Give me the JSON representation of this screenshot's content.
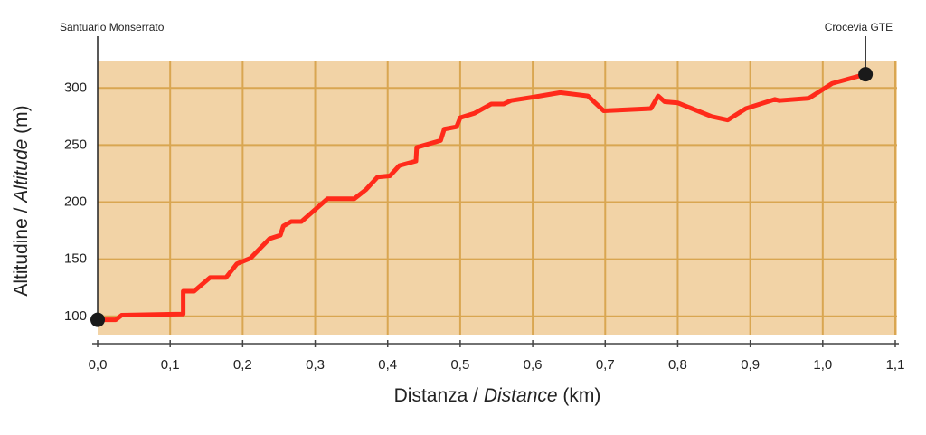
{
  "chart_data": {
    "type": "line",
    "x_label": [
      "Distanza / ",
      "Distance",
      " (km)"
    ],
    "y_label": [
      "Altitudine / ",
      "Altitude",
      " (m)"
    ],
    "x": [
      0,
      0.025,
      0.033,
      0.115,
      0.118,
      0.118,
      0.133,
      0.155,
      0.177,
      0.192,
      0.211,
      0.237,
      0.252,
      0.256,
      0.267,
      0.281,
      0.317,
      0.354,
      0.37,
      0.386,
      0.403,
      0.416,
      0.439,
      0.44,
      0.473,
      0.478,
      0.495,
      0.5,
      0.52,
      0.543,
      0.56,
      0.57,
      0.601,
      0.638,
      0.676,
      0.698,
      0.763,
      0.773,
      0.782,
      0.8,
      0.847,
      0.869,
      0.894,
      0.934,
      0.94,
      0.981,
      1.013,
      1.059
    ],
    "series": [
      {
        "color": "#ff2a1a",
        "values": [
          97,
          97,
          101,
          102,
          102,
          122,
          122,
          134,
          134,
          146,
          151,
          168,
          171,
          179,
          183,
          183,
          203,
          203,
          211,
          222,
          223,
          232,
          236,
          248,
          254,
          264,
          266,
          274,
          278,
          286,
          286,
          289,
          292,
          296,
          293,
          280,
          282,
          293,
          288,
          287,
          275,
          272,
          282,
          290,
          289,
          291,
          304,
          312
        ]
      }
    ],
    "annotations": [
      {
        "text": "Santuario Monserrato",
        "x": 0,
        "y": 97
      },
      {
        "text": "Crocevia GTE",
        "x": 1.059,
        "y": 312
      }
    ],
    "xlim": [
      0,
      1.1
    ],
    "ylim": [
      84,
      324
    ],
    "xticks": [
      {
        "value": 0,
        "label": "0,0"
      },
      {
        "value": 0.1,
        "label": "0,1"
      },
      {
        "value": 0.2,
        "label": "0,2"
      },
      {
        "value": 0.3,
        "label": "0,3"
      },
      {
        "value": 0.4,
        "label": "0,4"
      },
      {
        "value": 0.5,
        "label": "0,5"
      },
      {
        "value": 0.6,
        "label": "0,6"
      },
      {
        "value": 0.7,
        "label": "0,7"
      },
      {
        "value": 0.8,
        "label": "0,8"
      },
      {
        "value": 0.9,
        "label": "0,9"
      },
      {
        "value": 1.0,
        "label": "1,0"
      },
      {
        "value": 1.1,
        "label": "1,1"
      }
    ],
    "yticks": [
      100,
      150,
      200,
      250,
      300
    ],
    "grid": true,
    "background": "#f2d3a6",
    "grid_color": "#d9a651"
  }
}
